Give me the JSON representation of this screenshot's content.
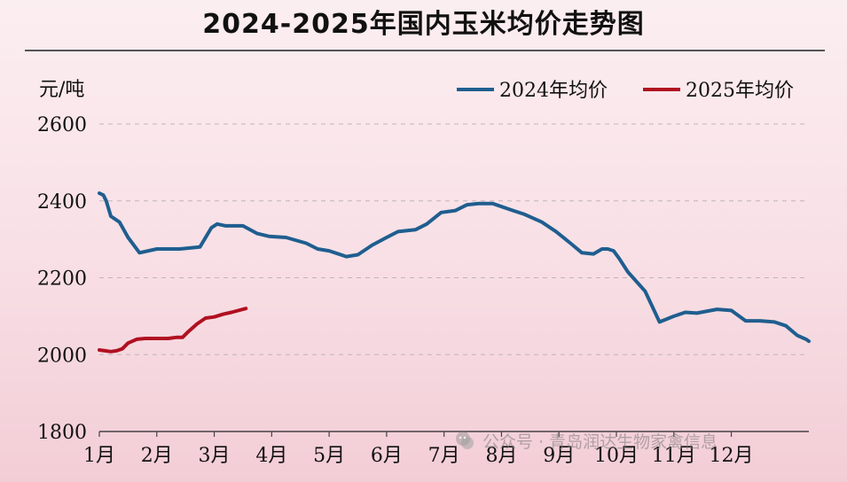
{
  "chart_data": {
    "type": "line",
    "title": "2024-2025年国内玉米均价走势图",
    "ylabel": "元/吨",
    "ylim": [
      1800,
      2600
    ],
    "yticks": [
      1800,
      2000,
      2200,
      2400,
      2600
    ],
    "categories": [
      "1月",
      "2月",
      "3月",
      "4月",
      "5月",
      "6月",
      "7月",
      "8月",
      "9月",
      "10月",
      "11月",
      "12月"
    ],
    "grid": true,
    "legend_position": "top-right",
    "series": [
      {
        "name": "2024年均价",
        "color": "#1f5e8f",
        "x": [
          1.0,
          1.07,
          1.12,
          1.2,
          1.35,
          1.5,
          1.7,
          2.0,
          2.4,
          2.75,
          2.95,
          3.05,
          3.2,
          3.35,
          3.5,
          3.75,
          3.95,
          4.25,
          4.6,
          4.8,
          5.0,
          5.3,
          5.5,
          5.75,
          6.0,
          6.2,
          6.5,
          6.7,
          6.95,
          7.2,
          7.4,
          7.6,
          7.85,
          8.2,
          8.4,
          8.7,
          8.95,
          9.2,
          9.4,
          9.6,
          9.75,
          9.85,
          9.95,
          10.05,
          10.2,
          10.5,
          10.75,
          11.0,
          11.2,
          11.4,
          11.75,
          12.0,
          12.25,
          12.45,
          12.5,
          12.75,
          12.95,
          13.15,
          13.3,
          13.35
        ],
        "values": [
          2420,
          2415,
          2400,
          2360,
          2345,
          2305,
          2265,
          2275,
          2275,
          2280,
          2330,
          2340,
          2335,
          2335,
          2335,
          2315,
          2308,
          2305,
          2290,
          2275,
          2270,
          2255,
          2260,
          2285,
          2305,
          2320,
          2325,
          2340,
          2370,
          2375,
          2390,
          2393,
          2393,
          2375,
          2365,
          2345,
          2320,
          2290,
          2265,
          2262,
          2275,
          2275,
          2270,
          2250,
          2215,
          2165,
          2085,
          2100,
          2110,
          2108,
          2118,
          2115,
          2088,
          2088,
          2088,
          2085,
          2075,
          2050,
          2040,
          2035
        ]
      },
      {
        "name": "2025年均价",
        "color": "#b01020",
        "x": [
          1.0,
          1.1,
          1.2,
          1.3,
          1.4,
          1.5,
          1.65,
          1.8,
          2.0,
          2.2,
          2.35,
          2.45,
          2.55,
          2.7,
          2.85,
          3.0,
          3.15,
          3.3,
          3.55
        ],
        "values": [
          2012,
          2010,
          2008,
          2010,
          2015,
          2030,
          2040,
          2042,
          2042,
          2042,
          2045,
          2045,
          2060,
          2080,
          2095,
          2098,
          2105,
          2110,
          2120
        ]
      }
    ]
  },
  "watermark": {
    "text": "公众号 · 青岛润达生物家禽信息"
  }
}
